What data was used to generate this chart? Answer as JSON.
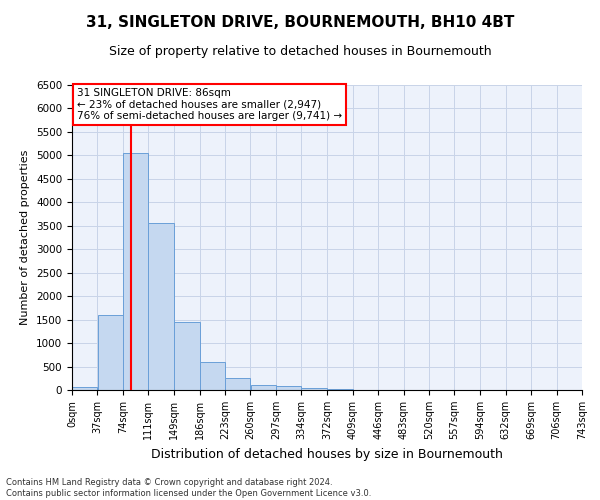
{
  "title1": "31, SINGLETON DRIVE, BOURNEMOUTH, BH10 4BT",
  "title2": "Size of property relative to detached houses in Bournemouth",
  "xlabel": "Distribution of detached houses by size in Bournemouth",
  "ylabel": "Number of detached properties",
  "bin_edges": [
    0,
    37,
    74,
    111,
    149,
    186,
    223,
    260,
    297,
    334,
    372,
    409,
    446,
    483,
    520,
    557,
    594,
    632,
    669,
    706,
    743
  ],
  "bar_heights": [
    60,
    1600,
    5050,
    3550,
    1450,
    600,
    250,
    100,
    75,
    50,
    20,
    8,
    4,
    3,
    2,
    1,
    1,
    0,
    0,
    0
  ],
  "bar_color": "#c5d8f0",
  "bar_edge_color": "#6a9fd8",
  "property_line_x": 86,
  "property_line_color": "red",
  "annotation_text_line1": "31 SINGLETON DRIVE: 86sqm",
  "annotation_text_line2": "← 23% of detached houses are smaller (2,947)",
  "annotation_text_line3": "76% of semi-detached houses are larger (9,741) →",
  "ylim": [
    0,
    6500
  ],
  "yticks": [
    0,
    500,
    1000,
    1500,
    2000,
    2500,
    3000,
    3500,
    4000,
    4500,
    5000,
    5500,
    6000,
    6500
  ],
  "grid_color": "#c8d4e8",
  "background_color": "#edf2fb",
  "footer_line1": "Contains HM Land Registry data © Crown copyright and database right 2024.",
  "footer_line2": "Contains public sector information licensed under the Open Government Licence v3.0.",
  "title1_fontsize": 11,
  "title2_fontsize": 9,
  "xlabel_fontsize": 9,
  "ylabel_fontsize": 8,
  "annot_fontsize": 7.5,
  "tick_fontsize": 7,
  "ytick_fontsize": 7.5,
  "tick_labels": [
    "0sqm",
    "37sqm",
    "74sqm",
    "111sqm",
    "149sqm",
    "186sqm",
    "223sqm",
    "260sqm",
    "297sqm",
    "334sqm",
    "372sqm",
    "409sqm",
    "446sqm",
    "483sqm",
    "520sqm",
    "557sqm",
    "594sqm",
    "632sqm",
    "669sqm",
    "706sqm",
    "743sqm"
  ]
}
